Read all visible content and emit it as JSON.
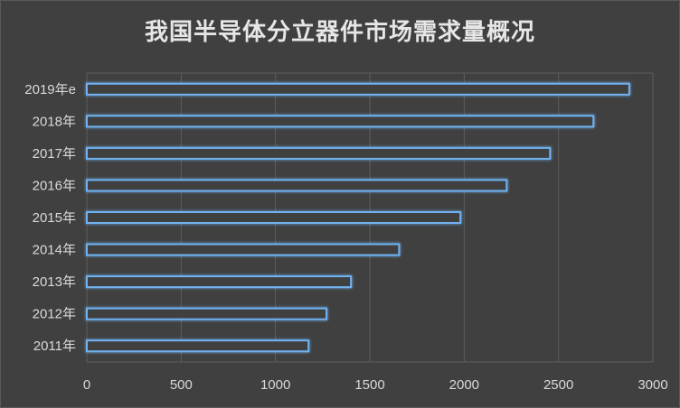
{
  "chart_data": {
    "type": "bar",
    "orientation": "horizontal",
    "title": "我国半导体分立器件市场需求量概况",
    "categories": [
      "2011年",
      "2012年",
      "2013年",
      "2014年",
      "2015年",
      "2016年",
      "2017年",
      "2018年",
      "2019年e"
    ],
    "values": [
      1175,
      1270,
      1400,
      1655,
      1980,
      2225,
      2455,
      2685,
      2875
    ],
    "xlim": [
      0,
      3000
    ],
    "xticks": [
      0,
      500,
      1000,
      1500,
      2000,
      2500,
      3000
    ],
    "grid": true,
    "legend": "none",
    "colors": {
      "background": "#404040",
      "bar_fill": "#3f3f3f",
      "bar_edge": "#6fb2f0",
      "grid": "#5e5e5e",
      "text": "#d9d9d9",
      "title": "#e6e6e6"
    }
  }
}
